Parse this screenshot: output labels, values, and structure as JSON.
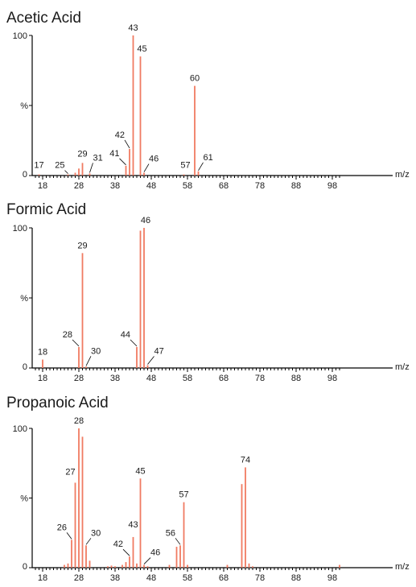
{
  "colors": {
    "peak": "#f07b62",
    "axis": "#000000",
    "text": "#1a1a1a"
  },
  "chart_data": [
    {
      "type": "bar",
      "title": "Acetic Acid",
      "xlabel": "m/z",
      "ylabel": "%",
      "xlim": [
        16,
        100
      ],
      "ylim": [
        0,
        100
      ],
      "x_ticks": [
        18,
        28,
        38,
        48,
        58,
        68,
        78,
        88,
        98
      ],
      "y_ticks": [
        0,
        100
      ],
      "peaks": [
        {
          "x": 17,
          "y": 0.8,
          "label": "17"
        },
        {
          "x": 25,
          "y": 0.8,
          "label": "25"
        },
        {
          "x": 27,
          "y": 2
        },
        {
          "x": 28,
          "y": 5
        },
        {
          "x": 29,
          "y": 9,
          "label": "29"
        },
        {
          "x": 31,
          "y": 1.5,
          "label": "31"
        },
        {
          "x": 41,
          "y": 7,
          "label": "41"
        },
        {
          "x": 42,
          "y": 19,
          "label": "42"
        },
        {
          "x": 43,
          "y": 100,
          "label": "43"
        },
        {
          "x": 45,
          "y": 85,
          "label": "45"
        },
        {
          "x": 46,
          "y": 2,
          "label": "46"
        },
        {
          "x": 57,
          "y": 0.8,
          "label": "57"
        },
        {
          "x": 60,
          "y": 64,
          "label": "60"
        },
        {
          "x": 61,
          "y": 3,
          "label": "61"
        }
      ]
    },
    {
      "type": "bar",
      "title": "Formic Acid",
      "xlabel": "m/z",
      "ylabel": "%",
      "xlim": [
        16,
        100
      ],
      "ylim": [
        0,
        100
      ],
      "x_ticks": [
        18,
        28,
        38,
        48,
        58,
        68,
        78,
        88,
        98
      ],
      "y_ticks": [
        0,
        100
      ],
      "peaks": [
        {
          "x": 18,
          "y": 6,
          "label": "18"
        },
        {
          "x": 28,
          "y": 15,
          "label": "28"
        },
        {
          "x": 29,
          "y": 82,
          "label": "29"
        },
        {
          "x": 30,
          "y": 1,
          "label": "30"
        },
        {
          "x": 44,
          "y": 15,
          "label": "44"
        },
        {
          "x": 45,
          "y": 98
        },
        {
          "x": 46,
          "y": 100,
          "label": "46"
        },
        {
          "x": 47,
          "y": 2,
          "label": "47"
        }
      ]
    },
    {
      "type": "bar",
      "title": "Propanoic Acid",
      "xlabel": "m/z",
      "ylabel": "%",
      "xlim": [
        16,
        100
      ],
      "ylim": [
        0,
        100
      ],
      "x_ticks": [
        18,
        28,
        38,
        48,
        58,
        68,
        78,
        88,
        98
      ],
      "y_ticks": [
        0,
        100
      ],
      "peaks": [
        {
          "x": 24,
          "y": 2
        },
        {
          "x": 25,
          "y": 3
        },
        {
          "x": 26,
          "y": 20,
          "label": "26"
        },
        {
          "x": 27,
          "y": 61,
          "label": "27"
        },
        {
          "x": 28,
          "y": 100,
          "label": "28"
        },
        {
          "x": 29,
          "y": 94
        },
        {
          "x": 30,
          "y": 16,
          "label": "30"
        },
        {
          "x": 31,
          "y": 5
        },
        {
          "x": 36,
          "y": 1
        },
        {
          "x": 37,
          "y": 1.5
        },
        {
          "x": 38,
          "y": 1
        },
        {
          "x": 40,
          "y": 2
        },
        {
          "x": 41,
          "y": 4
        },
        {
          "x": 42,
          "y": 8,
          "label": "42"
        },
        {
          "x": 43,
          "y": 22,
          "label": "43"
        },
        {
          "x": 44,
          "y": 3
        },
        {
          "x": 45,
          "y": 64,
          "label": "45"
        },
        {
          "x": 46,
          "y": 2,
          "label": "46"
        },
        {
          "x": 47,
          "y": 1
        },
        {
          "x": 53,
          "y": 2
        },
        {
          "x": 55,
          "y": 15
        },
        {
          "x": 56,
          "y": 16,
          "label": "56"
        },
        {
          "x": 57,
          "y": 47,
          "label": "57"
        },
        {
          "x": 58,
          "y": 2
        },
        {
          "x": 69,
          "y": 2
        },
        {
          "x": 73,
          "y": 60
        },
        {
          "x": 74,
          "y": 72,
          "label": "74"
        },
        {
          "x": 75,
          "y": 3
        },
        {
          "x": 76,
          "y": 1
        },
        {
          "x": 100,
          "y": 2
        }
      ]
    }
  ]
}
